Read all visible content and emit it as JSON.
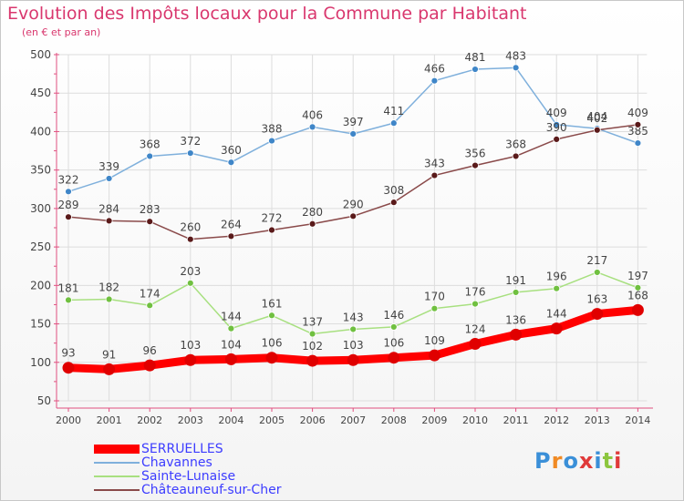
{
  "header": {
    "title": "Evolution des Impôts locaux pour la Commune par Habitant",
    "subtitle": "(en € et par an)"
  },
  "logo": {
    "text": "Proxiti"
  },
  "colors": {
    "title": "#d9376e",
    "axis": "#e05080",
    "grid": "#dddddd",
    "label": "#444444"
  },
  "chart_data": {
    "type": "line",
    "title": "Evolution des Impôts locaux pour la Commune par Habitant",
    "subtitle": "(en € et par an)",
    "xlabel": "",
    "ylabel": "",
    "categories": [
      "2000",
      "2001",
      "2002",
      "2003",
      "2004",
      "2005",
      "2006",
      "2007",
      "2008",
      "2009",
      "2010",
      "2011",
      "2012",
      "2013",
      "2014"
    ],
    "ylim": [
      50,
      500
    ],
    "yticks": [
      50,
      100,
      150,
      200,
      250,
      300,
      350,
      400,
      450,
      500
    ],
    "grid": true,
    "legend_position": "bottom-left",
    "series": [
      {
        "name": "SERRUELLES",
        "color": "#ff0000",
        "dot": "#e00000",
        "emphasis": true,
        "values": [
          93,
          91,
          96,
          103,
          104,
          106,
          102,
          103,
          106,
          109,
          124,
          136,
          144,
          163,
          168
        ]
      },
      {
        "name": "Chavannes",
        "color": "#7fb0dc",
        "dot": "#3f86c8",
        "emphasis": false,
        "values": [
          322,
          339,
          368,
          372,
          360,
          388,
          406,
          397,
          411,
          466,
          481,
          483,
          409,
          404,
          385
        ]
      },
      {
        "name": "Sainte-Lunaise",
        "color": "#a8e080",
        "dot": "#70c040",
        "emphasis": false,
        "values": [
          181,
          182,
          174,
          203,
          144,
          161,
          137,
          143,
          146,
          170,
          176,
          191,
          196,
          217,
          197
        ]
      },
      {
        "name": "Châteauneuf-sur-Cher",
        "color": "#8a4a4a",
        "dot": "#5a1a1a",
        "emphasis": false,
        "values": [
          289,
          284,
          283,
          260,
          264,
          272,
          280,
          290,
          308,
          343,
          356,
          368,
          390,
          402,
          409
        ]
      }
    ]
  }
}
